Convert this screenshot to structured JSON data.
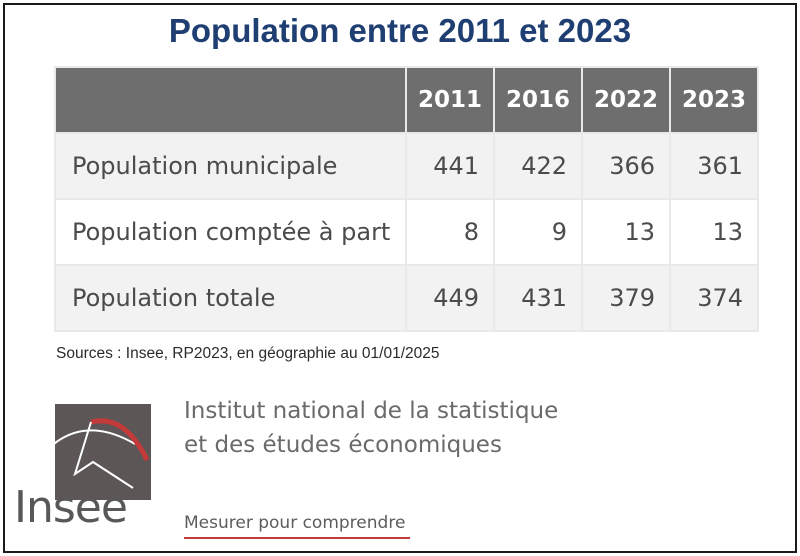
{
  "title": "Population entre 2011 et 2023",
  "table": {
    "columns": [
      "",
      "2011",
      "2016",
      "2022",
      "2023"
    ],
    "rows": [
      {
        "label": "Population municipale",
        "values": [
          "441",
          "422",
          "366",
          "361"
        ]
      },
      {
        "label": "Population comptée à part",
        "values": [
          "8",
          "9",
          "13",
          "13"
        ]
      },
      {
        "label": "Population totale",
        "values": [
          "449",
          "431",
          "379",
          "374"
        ]
      }
    ]
  },
  "sources": "Sources : Insee, RP2023, en géographie au 01/01/2025",
  "logo": {
    "wordmark": "Insee",
    "line1": "Institut national de la statistique",
    "line2": "et des études économiques",
    "slogan": "Mesurer pour comprendre",
    "colors": {
      "box": "#5c5657",
      "accent": "#c33a3a"
    }
  }
}
